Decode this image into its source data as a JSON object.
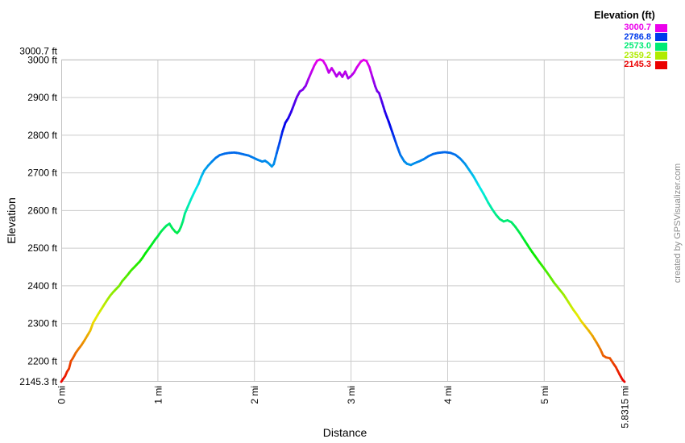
{
  "chart_data": {
    "type": "line",
    "subtype": "elevation-profile-colored-by-elevation",
    "title": "",
    "watermark": "created by GPSVisualizer.com",
    "grid": true,
    "x_axis": {
      "title": "Distance",
      "unit": "mi",
      "min": 0,
      "max": 5.8315,
      "ticks": [
        {
          "label": "0 mi",
          "value": 0
        },
        {
          "label": "1 mi",
          "value": 1
        },
        {
          "label": "2 mi",
          "value": 2
        },
        {
          "label": "3 mi",
          "value": 3
        },
        {
          "label": "4 mi",
          "value": 4
        },
        {
          "label": "5 mi",
          "value": 5
        },
        {
          "label": "5.8315 mi",
          "value": 5.8315
        }
      ]
    },
    "y_axis": {
      "title": "Elevation",
      "unit": "ft",
      "min": 2145.3,
      "max": 3000.7,
      "ticks": [
        {
          "label": "3000.7 ft",
          "value": 3000.7
        },
        {
          "label": "3000 ft",
          "value": 3000
        },
        {
          "label": "2900 ft",
          "value": 2900
        },
        {
          "label": "2800 ft",
          "value": 2800
        },
        {
          "label": "2700 ft",
          "value": 2700
        },
        {
          "label": "2600 ft",
          "value": 2600
        },
        {
          "label": "2500 ft",
          "value": 2500
        },
        {
          "label": "2400 ft",
          "value": 2400
        },
        {
          "label": "2300 ft",
          "value": 2300
        },
        {
          "label": "2200 ft",
          "value": 2200
        },
        {
          "label": "2145.3 ft",
          "value": 2145.3
        }
      ]
    },
    "legend": {
      "title": "Elevation (ft)",
      "entries": [
        {
          "label": "3000.7",
          "value": 3000.7
        },
        {
          "label": "2786.8",
          "value": 2786.8
        },
        {
          "label": "2573.0",
          "value": 2573.0
        },
        {
          "label": "2359.2",
          "value": 2359.2
        },
        {
          "label": "2145.3",
          "value": 2145.3
        }
      ]
    },
    "colormap": {
      "name": "rainbow-by-elevation",
      "hue_start": 0,
      "hue_end": 300,
      "min_color_hex": "#eb0000",
      "max_color_hex": "#eb00eb"
    },
    "colors": {
      "grid": "#cccccc",
      "frame": "#c2c2c2",
      "text": "#000000",
      "watermark": "#8c8c8c",
      "background": "#ffffff"
    },
    "series": [
      {
        "name": "elevation-profile",
        "points": [
          [
            0,
            2145.3
          ],
          [
            0.02,
            2153
          ],
          [
            0.04,
            2160
          ],
          [
            0.06,
            2172
          ],
          [
            0.08,
            2180
          ],
          [
            0.1,
            2200
          ],
          [
            0.12,
            2208
          ],
          [
            0.15,
            2222
          ],
          [
            0.18,
            2233
          ],
          [
            0.21,
            2243
          ],
          [
            0.24,
            2255
          ],
          [
            0.27,
            2268
          ],
          [
            0.3,
            2281
          ],
          [
            0.33,
            2302
          ],
          [
            0.36,
            2315
          ],
          [
            0.39,
            2328
          ],
          [
            0.42,
            2340
          ],
          [
            0.45,
            2352
          ],
          [
            0.48,
            2364
          ],
          [
            0.51,
            2375
          ],
          [
            0.54,
            2384
          ],
          [
            0.57,
            2392
          ],
          [
            0.6,
            2400
          ],
          [
            0.63,
            2412
          ],
          [
            0.66,
            2421
          ],
          [
            0.69,
            2430
          ],
          [
            0.72,
            2440
          ],
          [
            0.75,
            2448
          ],
          [
            0.78,
            2456
          ],
          [
            0.81,
            2464
          ],
          [
            0.84,
            2474
          ],
          [
            0.87,
            2486
          ],
          [
            0.91,
            2500
          ],
          [
            0.94,
            2511
          ],
          [
            0.97,
            2522
          ],
          [
            1.0,
            2532
          ],
          [
            1.03,
            2543
          ],
          [
            1.06,
            2552
          ],
          [
            1.09,
            2560
          ],
          [
            1.12,
            2565
          ],
          [
            1.15,
            2553
          ],
          [
            1.18,
            2544
          ],
          [
            1.2,
            2540
          ],
          [
            1.22,
            2546
          ],
          [
            1.24,
            2557
          ],
          [
            1.26,
            2572
          ],
          [
            1.28,
            2592
          ],
          [
            1.31,
            2610
          ],
          [
            1.34,
            2628
          ],
          [
            1.38,
            2650
          ],
          [
            1.42,
            2670
          ],
          [
            1.45,
            2690
          ],
          [
            1.48,
            2706
          ],
          [
            1.52,
            2719
          ],
          [
            1.56,
            2730
          ],
          [
            1.6,
            2740
          ],
          [
            1.64,
            2747
          ],
          [
            1.69,
            2751
          ],
          [
            1.74,
            2753
          ],
          [
            1.79,
            2754
          ],
          [
            1.84,
            2752
          ],
          [
            1.89,
            2749
          ],
          [
            1.94,
            2746
          ],
          [
            1.99,
            2740
          ],
          [
            2.04,
            2734
          ],
          [
            2.08,
            2730
          ],
          [
            2.11,
            2732
          ],
          [
            2.14,
            2727
          ],
          [
            2.16,
            2722
          ],
          [
            2.18,
            2717
          ],
          [
            2.2,
            2723
          ],
          [
            2.23,
            2752
          ],
          [
            2.26,
            2780
          ],
          [
            2.29,
            2810
          ],
          [
            2.32,
            2833
          ],
          [
            2.35,
            2845
          ],
          [
            2.38,
            2862
          ],
          [
            2.41,
            2882
          ],
          [
            2.44,
            2902
          ],
          [
            2.47,
            2916
          ],
          [
            2.5,
            2921
          ],
          [
            2.53,
            2931
          ],
          [
            2.56,
            2950
          ],
          [
            2.59,
            2968
          ],
          [
            2.62,
            2985
          ],
          [
            2.65,
            2998
          ],
          [
            2.68,
            3000.7
          ],
          [
            2.71,
            2998
          ],
          [
            2.74,
            2985
          ],
          [
            2.77,
            2966
          ],
          [
            2.8,
            2978
          ],
          [
            2.82,
            2970
          ],
          [
            2.85,
            2956
          ],
          [
            2.88,
            2967
          ],
          [
            2.91,
            2955
          ],
          [
            2.94,
            2969
          ],
          [
            2.97,
            2951
          ],
          [
            3.0,
            2957
          ],
          [
            3.03,
            2966
          ],
          [
            3.06,
            2980
          ],
          [
            3.1,
            2995
          ],
          [
            3.13,
            3000
          ],
          [
            3.16,
            2997
          ],
          [
            3.19,
            2981
          ],
          [
            3.22,
            2955
          ],
          [
            3.25,
            2930
          ],
          [
            3.27,
            2917
          ],
          [
            3.29,
            2912
          ],
          [
            3.32,
            2888
          ],
          [
            3.35,
            2863
          ],
          [
            3.39,
            2836
          ],
          [
            3.43,
            2806
          ],
          [
            3.47,
            2776
          ],
          [
            3.51,
            2748
          ],
          [
            3.55,
            2731
          ],
          [
            3.58,
            2724
          ],
          [
            3.62,
            2721
          ],
          [
            3.66,
            2726
          ],
          [
            3.7,
            2730
          ],
          [
            3.75,
            2736
          ],
          [
            3.8,
            2744
          ],
          [
            3.85,
            2750
          ],
          [
            3.9,
            2753
          ],
          [
            3.97,
            2755
          ],
          [
            4.03,
            2753
          ],
          [
            4.08,
            2748
          ],
          [
            4.13,
            2738
          ],
          [
            4.18,
            2724
          ],
          [
            4.22,
            2709
          ],
          [
            4.27,
            2690
          ],
          [
            4.32,
            2667
          ],
          [
            4.37,
            2645
          ],
          [
            4.42,
            2621
          ],
          [
            4.46,
            2604
          ],
          [
            4.5,
            2589
          ],
          [
            4.54,
            2577
          ],
          [
            4.58,
            2571
          ],
          [
            4.62,
            2574
          ],
          [
            4.66,
            2569
          ],
          [
            4.7,
            2557
          ],
          [
            4.75,
            2539
          ],
          [
            4.8,
            2519
          ],
          [
            4.85,
            2499
          ],
          [
            4.9,
            2481
          ],
          [
            4.95,
            2463
          ],
          [
            5.0,
            2446
          ],
          [
            5.05,
            2428
          ],
          [
            5.1,
            2409
          ],
          [
            5.15,
            2393
          ],
          [
            5.2,
            2377
          ],
          [
            5.25,
            2357
          ],
          [
            5.3,
            2337
          ],
          [
            5.34,
            2323
          ],
          [
            5.38,
            2307
          ],
          [
            5.42,
            2294
          ],
          [
            5.46,
            2281
          ],
          [
            5.5,
            2267
          ],
          [
            5.54,
            2250
          ],
          [
            5.58,
            2232
          ],
          [
            5.61,
            2215
          ],
          [
            5.64,
            2210
          ],
          [
            5.68,
            2208
          ],
          [
            5.71,
            2196
          ],
          [
            5.74,
            2185
          ],
          [
            5.78,
            2165
          ],
          [
            5.81,
            2151
          ],
          [
            5.8315,
            2145.3
          ]
        ]
      }
    ]
  }
}
